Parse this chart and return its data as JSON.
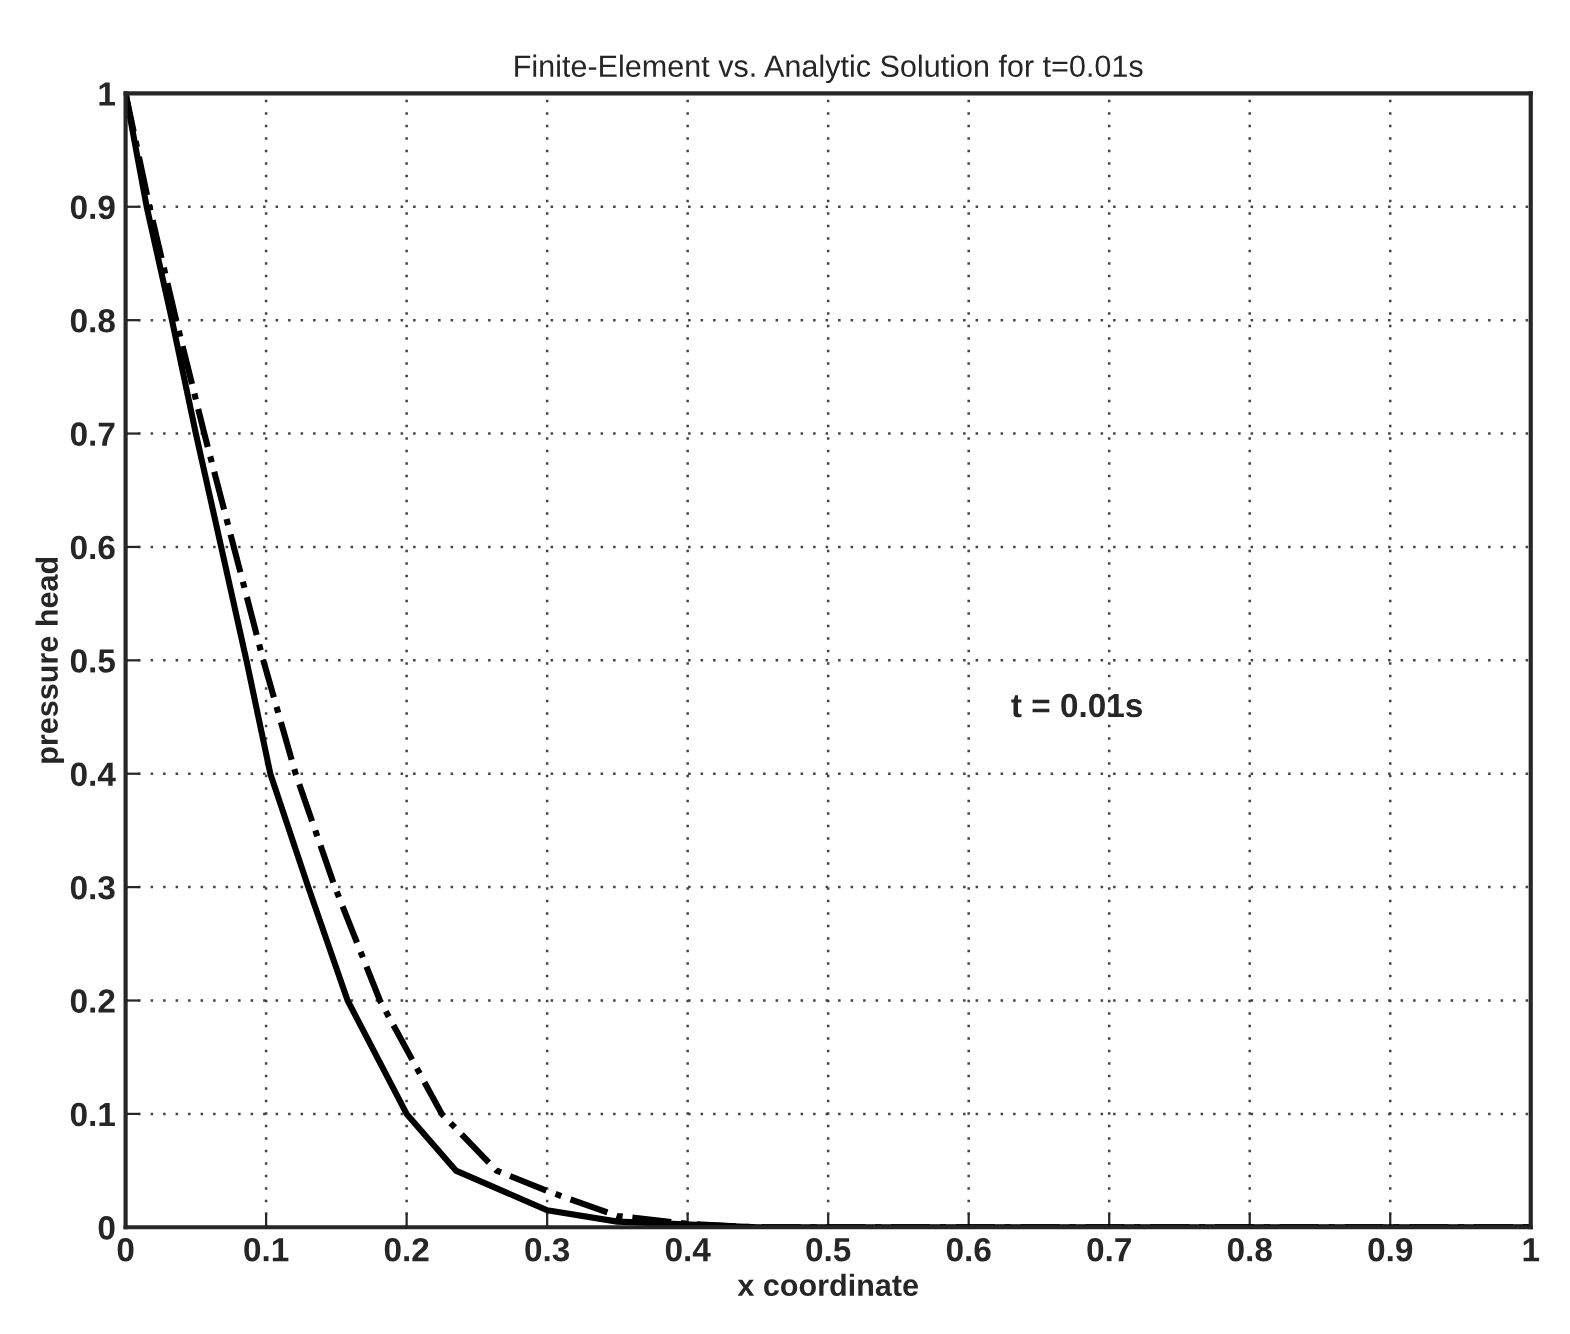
{
  "chart_data": {
    "type": "line",
    "title": "Finite-Element vs. Analytic Solution for t=0.01s",
    "xlabel": "x coordinate",
    "ylabel": "pressure head",
    "series": [
      {
        "color": "#000000",
        "line_style": "solid",
        "x": [
          0,
          0.015,
          0.033,
          0.05,
          0.068,
          0.086,
          0.103,
          0.13,
          0.158,
          0.2,
          0.235,
          0.3,
          0.35,
          0.45,
          1
        ],
        "values": [
          1,
          0.9,
          0.8,
          0.7,
          0.6,
          0.5,
          0.4,
          0.3,
          0.2,
          0.1,
          0.05,
          0.015,
          0.005,
          0,
          0
        ]
      },
      {
        "color": "#000000",
        "line_style": "dashdot",
        "x": [
          0,
          0.017,
          0.036,
          0.056,
          0.077,
          0.098,
          0.121,
          0.149,
          0.181,
          0.225,
          0.264,
          0.3,
          0.35,
          0.4,
          0.45,
          1
        ],
        "values": [
          1,
          0.9,
          0.8,
          0.7,
          0.6,
          0.5,
          0.4,
          0.3,
          0.2,
          0.1,
          0.05,
          0.032,
          0.01,
          0.003,
          0,
          0
        ]
      }
    ],
    "annotations": [
      "t = 0.01s"
    ],
    "xlim": [
      0,
      1
    ],
    "ylim": [
      0,
      1
    ],
    "xticks": [
      0,
      0.1,
      0.2,
      0.3,
      0.4,
      0.5,
      0.6,
      0.7,
      0.8,
      0.9,
      1
    ],
    "yticks": [
      0,
      0.1,
      0.2,
      0.3,
      0.4,
      0.5,
      0.6,
      0.7,
      0.8,
      0.9,
      1
    ],
    "grid": true
  }
}
